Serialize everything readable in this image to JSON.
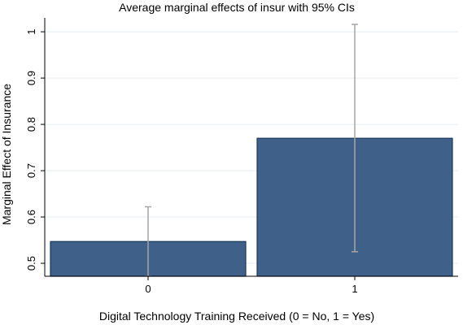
{
  "chart_data": {
    "type": "bar",
    "title": "Average marginal effects of insur with 95% CIs",
    "xlabel": "Digital Technology Training Received (0 = No, 1 = Yes)",
    "ylabel": "Marginal Effect of Insurance",
    "categories": [
      "0",
      "1"
    ],
    "values": [
      0.547,
      0.77
    ],
    "ci_low": [
      0.472,
      0.525
    ],
    "ci_high": [
      0.622,
      1.016
    ],
    "bar_base": 0.472,
    "ylim": [
      0.472,
      1.03
    ],
    "yticks": [
      0.5,
      0.6,
      0.7,
      0.8,
      0.9,
      1
    ],
    "ytick_labels": [
      "0.5",
      "0.6",
      "0.7",
      "0.8",
      "0.9",
      "1"
    ],
    "grid": true,
    "colors": {
      "bar_fill": "#3f6189",
      "bar_stroke": "#1a3a5e",
      "ci": "#a6a6a6",
      "grid": "#e6ecf1",
      "axis": "#000000"
    }
  }
}
